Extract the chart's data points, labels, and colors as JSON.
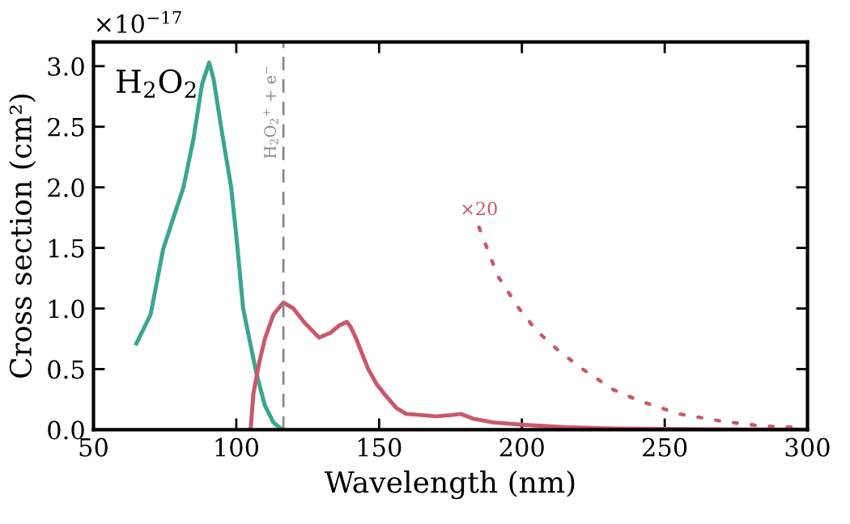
{
  "chart_data": {
    "type": "line",
    "xlabel": "Wavelength (nm)",
    "ylabel": "Cross section (cm²)",
    "xlim": [
      50,
      300
    ],
    "xticks": [
      50,
      100,
      150,
      200,
      250,
      300
    ],
    "ylim": [
      0,
      3.2
    ],
    "yticks": [
      {
        "value": 0,
        "label": "0.0"
      },
      {
        "value": 0.5,
        "label": "0.5"
      },
      {
        "value": 1,
        "label": "1.0"
      },
      {
        "value": 1.5,
        "label": "1.5"
      },
      {
        "value": 2,
        "label": "2.0"
      },
      {
        "value": 2.5,
        "label": "2.5"
      },
      {
        "value": 3,
        "label": "3.0"
      }
    ],
    "grid": false,
    "legend": false,
    "marker": "none",
    "series": [
      {
        "color": "#3aa68e",
        "line_style": "solid",
        "x": [
          65,
          70,
          74.4,
          78,
          81.5,
          85,
          88,
          90.5,
          92,
          95,
          98.2,
          100,
          102.4,
          105,
          107,
          110,
          113,
          116
        ],
        "values": [
          0.71,
          0.95,
          1.49,
          1.75,
          2.0,
          2.4,
          2.85,
          3.03,
          2.9,
          2.45,
          2.0,
          1.6,
          1.0,
          0.7,
          0.47,
          0.2,
          0.06,
          0
        ]
      },
      {
        "color": "#c9586b",
        "line_style": "solid",
        "x": [
          105,
          106,
          108,
          110,
          113,
          116.5,
          120,
          124,
          129,
          133,
          136,
          138.7,
          140,
          142,
          146,
          149,
          152,
          156,
          159.5,
          165,
          170,
          175,
          178.6,
          183,
          190,
          200,
          215,
          230,
          250,
          275,
          300
        ],
        "values": [
          0,
          0.3,
          0.55,
          0.75,
          0.95,
          1.05,
          1.0,
          0.88,
          0.76,
          0.8,
          0.86,
          0.89,
          0.85,
          0.75,
          0.51,
          0.38,
          0.29,
          0.18,
          0.13,
          0.12,
          0.11,
          0.12,
          0.13,
          0.09,
          0.06,
          0.04,
          0.02,
          0.01,
          0.005,
          0.002,
          0
        ]
      },
      {
        "name": "×20",
        "color": "#c9586b",
        "line_style": "dotted",
        "x": [
          185,
          191.5,
          199,
          205,
          212,
          220,
          232,
          241,
          255,
          270,
          284,
          294.5
        ],
        "values": [
          1.67,
          1.27,
          1.0,
          0.82,
          0.67,
          0.52,
          0.33,
          0.24,
          0.13,
          0.07,
          0.03,
          0.02
        ]
      }
    ],
    "ref_lines": [
      {
        "axis": "x",
        "value": 116.5,
        "label": "H$_{2}$O$_{2}$$^{+}$ + e$^{−}$",
        "color": "#888888",
        "line_style": "dashed"
      }
    ],
    "annotations": [
      "×10$^{−17}$",
      {
        "text": "H$_{2}$O$_{2}$"
      }
    ]
  }
}
